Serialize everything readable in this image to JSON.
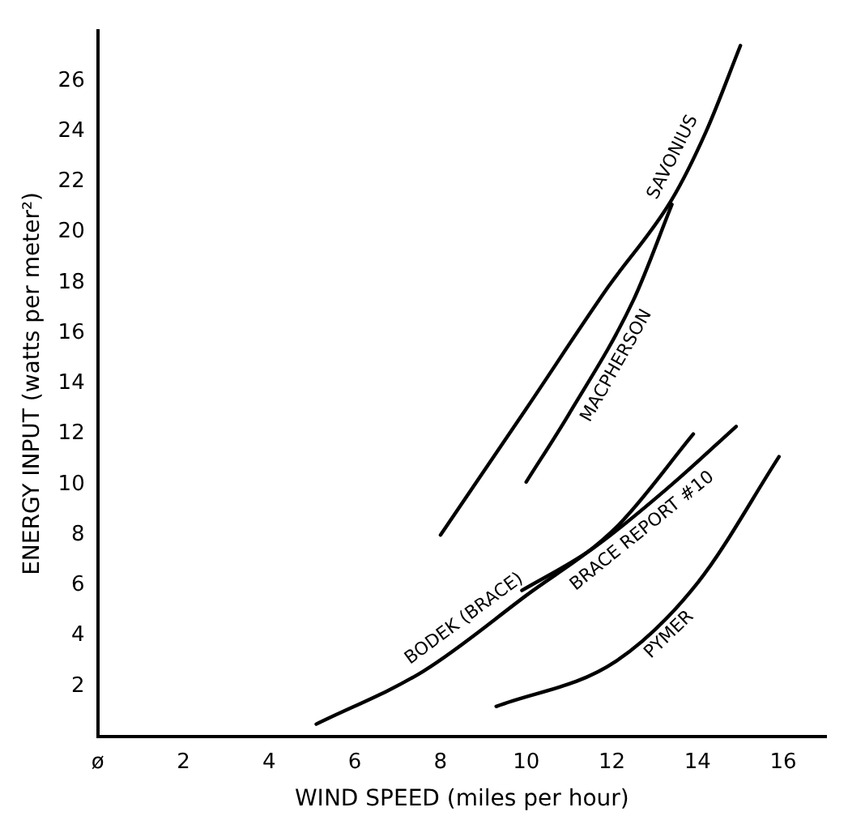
{
  "chart_data": {
    "type": "line",
    "xlabel": "WIND SPEED (miles per hour)",
    "ylabel": "ENERGY INPUT (watts per meter²)",
    "xlim": [
      0,
      17
    ],
    "ylim": [
      0,
      28
    ],
    "xticks": [
      {
        "value": 0,
        "label": "ø"
      },
      2,
      4,
      6,
      8,
      10,
      12,
      14,
      16
    ],
    "yticks": [
      2,
      4,
      6,
      8,
      10,
      12,
      14,
      16,
      18,
      20,
      22,
      24,
      26
    ],
    "grid": false,
    "legend": false,
    "marker": "none",
    "line_style": "solid",
    "series": [
      {
        "name": "SAVONIUS",
        "color": "#000000",
        "x": [
          8,
          10,
          11.9,
          13.4,
          14.2,
          15
        ],
        "values": [
          8,
          13,
          17.8,
          21.3,
          24,
          27.4
        ]
      },
      {
        "name": "MACPHERSON",
        "color": "#000000",
        "x": [
          10,
          11,
          12.5,
          13.4
        ],
        "values": [
          10.1,
          12.8,
          17.3,
          21.1
        ]
      },
      {
        "name": "BODEK (BRACE)",
        "color": "#000000",
        "x": [
          5.1,
          7.6,
          10,
          12.1,
          13.9
        ],
        "values": [
          0.5,
          2.6,
          5.6,
          8.3,
          12
        ]
      },
      {
        "name": "BRACE REPORT #10",
        "color": "#000000",
        "x": [
          9.9,
          11.5,
          13.4,
          14.9
        ],
        "values": [
          5.8,
          7.4,
          10,
          12.3
        ]
      },
      {
        "name": "PYMER",
        "color": "#000000",
        "x": [
          9.3,
          12.1,
          14,
          15.9
        ],
        "values": [
          1.2,
          3,
          6.1,
          11.1
        ]
      }
    ]
  }
}
